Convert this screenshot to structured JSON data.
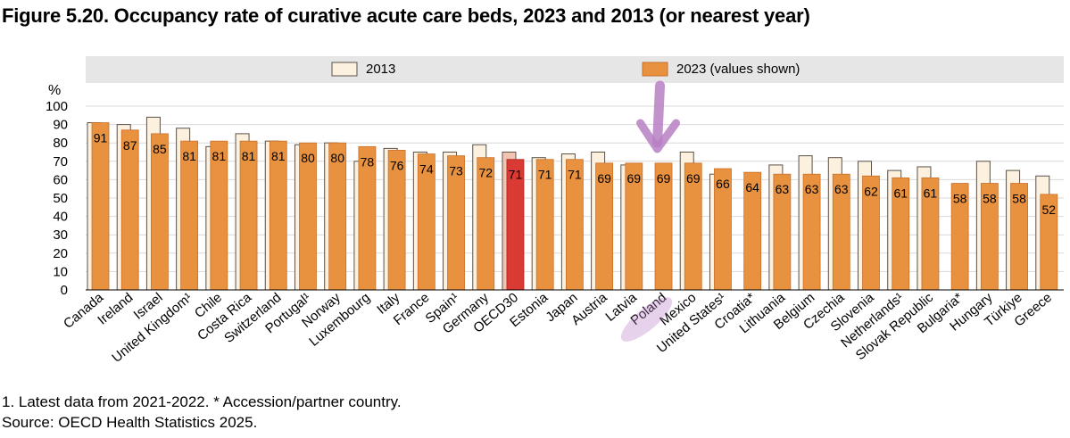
{
  "title": "Figure 5.20. Occupancy rate of curative acute care beds, 2023 and 2013 (or nearest year)",
  "footnotes": {
    "note1": "1. Latest data from 2021-2022. * Accession/partner country.",
    "source": "Source: OECD Health Statistics 2025."
  },
  "colors": {
    "bar2023": "#e8913f",
    "bar2023_stroke": "#c9702a",
    "bar2013": "#fcf1df",
    "bar2013_stroke": "#5a5148",
    "oecd2023": "#d93a34",
    "oecd2013": "#f4c4b2",
    "legend_bg": "#e6e6e6",
    "grid": "#d9d9d9",
    "annotation": "#b77fc3"
  },
  "chart_data": {
    "type": "bar",
    "ylabel": "%",
    "ylim": [
      0,
      100
    ],
    "yticks": [
      0,
      10,
      20,
      30,
      40,
      50,
      60,
      70,
      80,
      90,
      100
    ],
    "grid": true,
    "legend_position": "top",
    "highlighted_category": "OECD30",
    "annotated_category": "Poland",
    "categories": [
      "Canada",
      "Ireland",
      "Israel",
      "United Kingdom¹",
      "Chile",
      "Costa Rica",
      "Switzerland",
      "Portugal¹",
      "Norway",
      "Luxembourg",
      "Italy",
      "France",
      "Spain¹",
      "Germany",
      "OECD30",
      "Estonia",
      "Japan",
      "Austria",
      "Latvia",
      "Poland",
      "Mexico",
      "United States¹",
      "Croatia*",
      "Lithuania",
      "Belgium",
      "Czechia",
      "Slovenia",
      "Netherlands¹",
      "Slovak Republic",
      "Bulgaria*",
      "Hungary",
      "Türkiye",
      "Greece"
    ],
    "series": [
      {
        "name": "2013",
        "values": [
          91,
          90,
          94,
          88,
          78,
          85,
          81,
          79,
          80,
          70,
          77,
          75,
          75,
          79,
          75,
          72,
          74,
          75,
          68,
          null,
          75,
          63,
          null,
          68,
          73,
          72,
          70,
          65,
          67,
          null,
          70,
          65,
          62
        ]
      },
      {
        "name": "2023 (values shown)",
        "values": [
          91,
          87,
          85,
          81,
          81,
          81,
          81,
          80,
          80,
          78,
          76,
          74,
          73,
          72,
          71,
          71,
          71,
          69,
          69,
          69,
          69,
          66,
          64,
          63,
          63,
          63,
          62,
          61,
          61,
          58,
          58,
          58,
          52
        ]
      }
    ]
  }
}
